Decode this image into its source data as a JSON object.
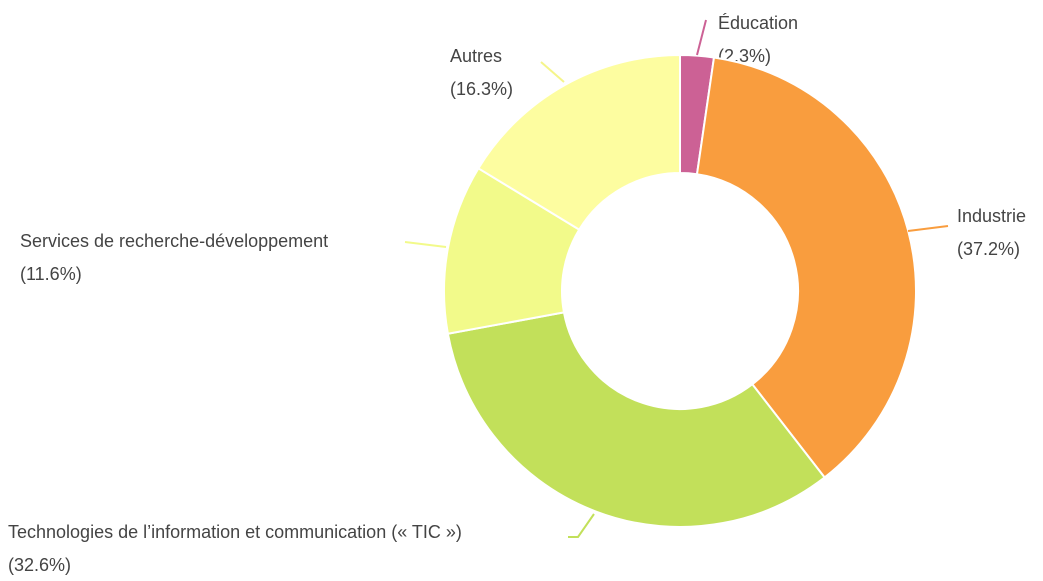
{
  "chart_data": {
    "type": "donut",
    "categories": [
      "Éducation",
      "Industrie",
      "Technologies de l’information et communication (« TIC »)",
      "Services de recherche-développement",
      "Autres"
    ],
    "values": [
      2.3,
      37.2,
      32.6,
      11.6,
      16.3
    ],
    "value_labels": [
      "(2.3%)",
      "(37.2%)",
      "(32.6%)",
      "(11.6%)",
      "(16.3%)"
    ],
    "colors": [
      "#cc6195",
      "#f99d3e",
      "#c2e05a",
      "#f2fa8a",
      "#fdfda0"
    ]
  }
}
